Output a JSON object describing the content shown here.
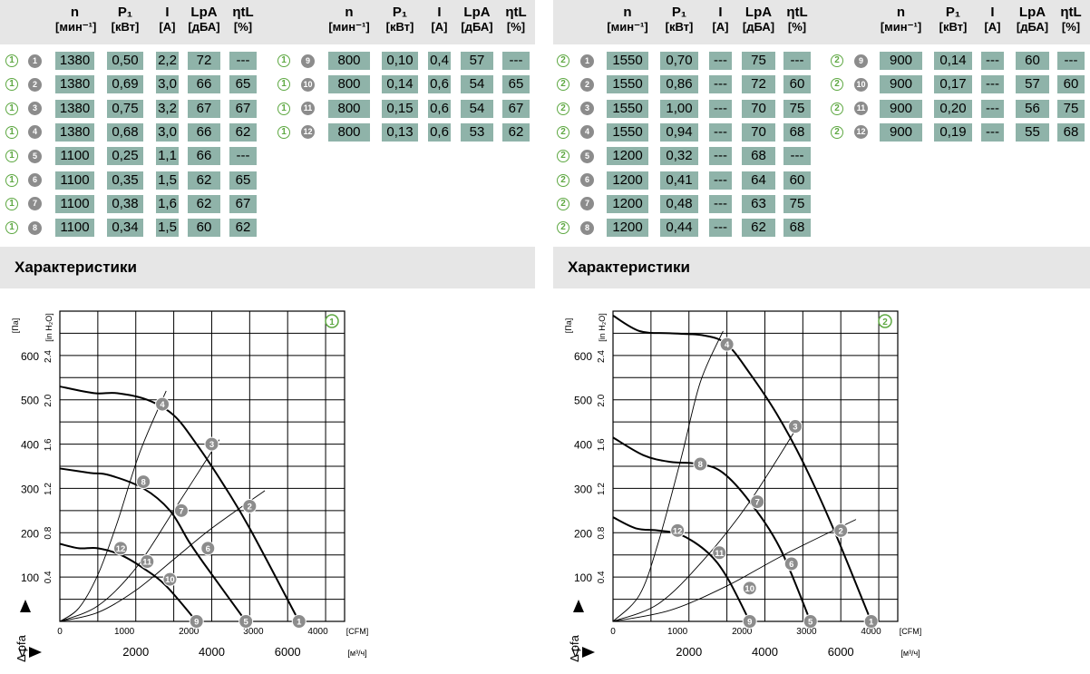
{
  "tables": [
    {
      "variant": "1",
      "headers": [
        {
          "sym": "n",
          "unit": "[мин⁻¹]"
        },
        {
          "sym": "P₁",
          "unit": "[кВт]"
        },
        {
          "sym": "I",
          "unit": "[А]"
        },
        {
          "sym": "LpA",
          "unit": "[дБА]"
        },
        {
          "sym": "ηtL",
          "unit": "[%]"
        }
      ],
      "rows_a": [
        {
          "id": "1",
          "n": "1380",
          "p": "0,50",
          "i": "2,2",
          "lp": "72",
          "eta": "---"
        },
        {
          "id": "2",
          "n": "1380",
          "p": "0,69",
          "i": "3,0",
          "lp": "66",
          "eta": "65"
        },
        {
          "id": "3",
          "n": "1380",
          "p": "0,75",
          "i": "3,2",
          "lp": "67",
          "eta": "67"
        },
        {
          "id": "4",
          "n": "1380",
          "p": "0,68",
          "i": "3,0",
          "lp": "66",
          "eta": "62"
        },
        {
          "id": "5",
          "n": "1100",
          "p": "0,25",
          "i": "1,1",
          "lp": "66",
          "eta": "---"
        },
        {
          "id": "6",
          "n": "1100",
          "p": "0,35",
          "i": "1,5",
          "lp": "62",
          "eta": "65"
        },
        {
          "id": "7",
          "n": "1100",
          "p": "0,38",
          "i": "1,6",
          "lp": "62",
          "eta": "67"
        },
        {
          "id": "8",
          "n": "1100",
          "p": "0,34",
          "i": "1,5",
          "lp": "60",
          "eta": "62"
        }
      ],
      "rows_b": [
        {
          "id": "9",
          "n": "800",
          "p": "0,10",
          "i": "0,4",
          "lp": "57",
          "eta": "---"
        },
        {
          "id": "10",
          "n": "800",
          "p": "0,14",
          "i": "0,6",
          "lp": "54",
          "eta": "65"
        },
        {
          "id": "11",
          "n": "800",
          "p": "0,15",
          "i": "0,6",
          "lp": "54",
          "eta": "67"
        },
        {
          "id": "12",
          "n": "800",
          "p": "0,13",
          "i": "0,6",
          "lp": "53",
          "eta": "62"
        }
      ]
    },
    {
      "variant": "2",
      "headers": [
        {
          "sym": "n",
          "unit": "[мин⁻¹]"
        },
        {
          "sym": "P₁",
          "unit": "[кВт]"
        },
        {
          "sym": "I",
          "unit": "[А]"
        },
        {
          "sym": "LpA",
          "unit": "[дБА]"
        },
        {
          "sym": "ηtL",
          "unit": "[%]"
        }
      ],
      "rows_a": [
        {
          "id": "1",
          "n": "1550",
          "p": "0,70",
          "i": "---",
          "lp": "75",
          "eta": "---"
        },
        {
          "id": "2",
          "n": "1550",
          "p": "0,86",
          "i": "---",
          "lp": "72",
          "eta": "60"
        },
        {
          "id": "3",
          "n": "1550",
          "p": "1,00",
          "i": "---",
          "lp": "70",
          "eta": "75"
        },
        {
          "id": "4",
          "n": "1550",
          "p": "0,94",
          "i": "---",
          "lp": "70",
          "eta": "68"
        },
        {
          "id": "5",
          "n": "1200",
          "p": "0,32",
          "i": "---",
          "lp": "68",
          "eta": "---"
        },
        {
          "id": "6",
          "n": "1200",
          "p": "0,41",
          "i": "---",
          "lp": "64",
          "eta": "60"
        },
        {
          "id": "7",
          "n": "1200",
          "p": "0,48",
          "i": "---",
          "lp": "63",
          "eta": "75"
        },
        {
          "id": "8",
          "n": "1200",
          "p": "0,44",
          "i": "---",
          "lp": "62",
          "eta": "68"
        }
      ],
      "rows_b": [
        {
          "id": "9",
          "n": "900",
          "p": "0,14",
          "i": "---",
          "lp": "60",
          "eta": "---"
        },
        {
          "id": "10",
          "n": "900",
          "p": "0,17",
          "i": "---",
          "lp": "57",
          "eta": "60"
        },
        {
          "id": "11",
          "n": "900",
          "p": "0,20",
          "i": "---",
          "lp": "56",
          "eta": "75"
        },
        {
          "id": "12",
          "n": "900",
          "p": "0,19",
          "i": "---",
          "lp": "55",
          "eta": "68"
        }
      ]
    }
  ],
  "section_title": "Характеристики",
  "chart_data": [
    {
      "type": "line",
      "badge": "1",
      "x_unit": "[м³/ч]",
      "x_ticks": [
        "2000",
        "4000",
        "6000"
      ],
      "x2_unit": "[CFM]",
      "x2_ticks": [
        "0",
        "1000",
        "2000",
        "3000",
        "4000"
      ],
      "y_unit": "[Па]",
      "y_ticks": [
        "100",
        "200",
        "300",
        "400",
        "500",
        "600"
      ],
      "y2_unit": "[in H₂O]",
      "y2_ticks": [
        "0.4",
        "0.8",
        "1.2",
        "1.6",
        "2.0",
        "2.4"
      ],
      "xlim": [
        0,
        7500
      ],
      "ylim": [
        0,
        700
      ],
      "y_label": "Δ pfa",
      "x_label": "V̇",
      "series": [
        {
          "x": [
            0,
            900,
            1500,
            2300,
            3000,
            3600,
            4300,
            5000,
            6300
          ],
          "y": [
            530,
            515,
            515,
            500,
            465,
            400,
            310,
            210,
            0
          ]
        },
        {
          "x": [
            0,
            800,
            1300,
            2200,
            2900,
            3400,
            3800,
            4900
          ],
          "y": [
            345,
            335,
            330,
            300,
            250,
            180,
            130,
            0
          ]
        },
        {
          "x": [
            0,
            500,
            1000,
            1600,
            2200,
            2800,
            3600
          ],
          "y": [
            175,
            165,
            165,
            150,
            120,
            80,
            0
          ]
        },
        {
          "x": [
            0,
            500,
            1000,
            1500,
            2100,
            2800
          ],
          "y": [
            0,
            30,
            105,
            220,
            380,
            520
          ]
        },
        {
          "x": [
            0,
            1000,
            2000,
            3000,
            4200
          ],
          "y": [
            0,
            35,
            120,
            250,
            410
          ]
        },
        {
          "x": [
            0,
            1000,
            2000,
            3000,
            4000,
            5400
          ],
          "y": [
            0,
            20,
            70,
            140,
            210,
            295
          ]
        }
      ],
      "points": [
        {
          "label": "1",
          "x": 6300,
          "y": 0
        },
        {
          "label": "2",
          "x": 5000,
          "y": 260
        },
        {
          "label": "3",
          "x": 4000,
          "y": 400
        },
        {
          "label": "4",
          "x": 2700,
          "y": 490
        },
        {
          "label": "5",
          "x": 4900,
          "y": 0
        },
        {
          "label": "6",
          "x": 3900,
          "y": 165
        },
        {
          "label": "7",
          "x": 3200,
          "y": 250
        },
        {
          "label": "8",
          "x": 2200,
          "y": 315
        },
        {
          "label": "9",
          "x": 3600,
          "y": 0
        },
        {
          "label": "10",
          "x": 2900,
          "y": 95
        },
        {
          "label": "11",
          "x": 2300,
          "y": 135
        },
        {
          "label": "12",
          "x": 1600,
          "y": 165
        }
      ]
    },
    {
      "type": "line",
      "badge": "2",
      "x_unit": "[м³/ч]",
      "x_ticks": [
        "2000",
        "4000",
        "6000"
      ],
      "x2_unit": "[CFM]",
      "x2_ticks": [
        "0",
        "1000",
        "2000",
        "3000",
        "4000"
      ],
      "y_unit": "[Па]",
      "y_ticks": [
        "100",
        "200",
        "300",
        "400",
        "500",
        "600"
      ],
      "y2_unit": "[in H₂O]",
      "y2_ticks": [
        "0.4",
        "0.8",
        "1.2",
        "1.6",
        "2.0",
        "2.4"
      ],
      "xlim": [
        0,
        7500
      ],
      "ylim": [
        0,
        700
      ],
      "y_label": "Δ pfa",
      "x_label": "V̇",
      "series": [
        {
          "x": [
            0,
            700,
            1500,
            2400,
            3000,
            3600,
            4300,
            5000,
            5800,
            6800
          ],
          "y": [
            690,
            655,
            650,
            645,
            625,
            560,
            470,
            360,
            210,
            0
          ]
        },
        {
          "x": [
            0,
            800,
            1500,
            2300,
            2900,
            3600,
            4400,
            5200
          ],
          "y": [
            415,
            375,
            360,
            355,
            335,
            270,
            165,
            0
          ]
        },
        {
          "x": [
            0,
            600,
            1200,
            1800,
            2500,
            3000,
            3600
          ],
          "y": [
            235,
            210,
            205,
            195,
            155,
            100,
            0
          ]
        },
        {
          "x": [
            0,
            700,
            1200,
            1800,
            2300,
            2900
          ],
          "y": [
            0,
            60,
            180,
            370,
            540,
            655
          ]
        },
        {
          "x": [
            0,
            1200,
            2400,
            3600,
            4900
          ],
          "y": [
            0,
            40,
            140,
            270,
            445
          ]
        },
        {
          "x": [
            0,
            1500,
            3000,
            4500,
            6400
          ],
          "y": [
            0,
            25,
            80,
            150,
            230
          ]
        }
      ],
      "points": [
        {
          "label": "1",
          "x": 6800,
          "y": 0
        },
        {
          "label": "2",
          "x": 6000,
          "y": 205
        },
        {
          "label": "3",
          "x": 4800,
          "y": 440
        },
        {
          "label": "4",
          "x": 3000,
          "y": 625
        },
        {
          "label": "5",
          "x": 5200,
          "y": 0
        },
        {
          "label": "6",
          "x": 4700,
          "y": 130
        },
        {
          "label": "7",
          "x": 3800,
          "y": 270
        },
        {
          "label": "8",
          "x": 2300,
          "y": 355
        },
        {
          "label": "9",
          "x": 3600,
          "y": 0
        },
        {
          "label": "10",
          "x": 3600,
          "y": 75
        },
        {
          "label": "11",
          "x": 2800,
          "y": 155
        },
        {
          "label": "12",
          "x": 1700,
          "y": 205
        }
      ]
    }
  ]
}
